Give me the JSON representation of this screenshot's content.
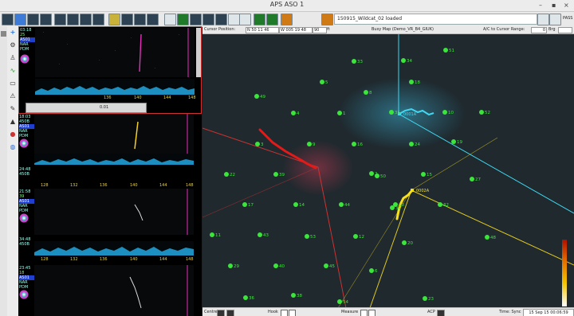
{
  "window": {
    "title": "APS ASO 1",
    "minimize": "–",
    "maximize": "▪",
    "close": "×"
  },
  "toolbar": {
    "load_status": "150915_Wildcat_02 loaded",
    "pass_label": "PASS"
  },
  "map_header": {
    "cursor_label": "Cursor Position:",
    "lat": "N 50 11 46",
    "lon": "W 005 19 48",
    "depth": "90",
    "depth_unit": "ft",
    "map_name": "Busy Map (Demo_VR_B4_GIUK)",
    "range_label": "A/C to Cursor Range:",
    "range_value": "0",
    "bearing_label": "Brg"
  },
  "panels": [
    {
      "time": "03:18",
      "id": "25",
      "mode": "AS01",
      "tags": [
        "NAR",
        "PDM"
      ],
      "ticks": [
        "136",
        "140",
        "144",
        "148"
      ],
      "bottom_value": "0.01"
    },
    {
      "time": "18:03",
      "id": "450B",
      "mode": "AS01",
      "tags": [
        "NAR",
        "PDM"
      ],
      "ticks": [
        "128",
        "132",
        "136",
        "140",
        "144",
        "148"
      ]
    },
    {
      "time": "24:48",
      "id": "450B",
      "mode": "AS01",
      "tags": [
        "NAR",
        "PDM"
      ],
      "ticks": [
        "128",
        "132",
        "136",
        "140",
        "144",
        "148"
      ]
    },
    {
      "time": "21:58",
      "id": "39",
      "mode": "AS01",
      "tags": [
        "NAR",
        "PDM"
      ],
      "ticks": [
        "128",
        "132",
        "136",
        "140",
        "144",
        "148"
      ]
    },
    {
      "time": "34:48",
      "id": "450B",
      "mode": "AS01",
      "tags": [
        "NAR",
        "PDM"
      ],
      "ticks": [
        "128",
        "132",
        "136",
        "140",
        "144",
        "148"
      ]
    },
    {
      "time": "23:45",
      "id": "18",
      "mode": "AS01",
      "tags": [
        "NAR",
        "PDM"
      ]
    }
  ],
  "buoys": [
    "33",
    "34",
    "51",
    "49",
    "5",
    "18",
    "8",
    "35",
    "10",
    "1",
    "4",
    "52",
    "3",
    "9",
    "16",
    "24",
    "19",
    "22",
    "39",
    "2",
    "15",
    "27",
    "17",
    "14",
    "44",
    "13",
    "32",
    "11",
    "43",
    "53",
    "12",
    "20",
    "48",
    "29",
    "40",
    "45",
    "6",
    "36",
    "38",
    "54",
    "23",
    "50",
    "31"
  ],
  "tracks": [
    {
      "label": "0001A",
      "color": "#3fd8f0"
    },
    {
      "label": "0002A",
      "color": "#f7e11a"
    },
    {
      "label": "",
      "color": "#e21a1a"
    }
  ],
  "map_status": {
    "centre_label": "Centre",
    "hook_label": "Hook",
    "measure_label": "Measure",
    "acp_label": "ACP",
    "time_label": "Time: Sync",
    "time_value": "15 Sep 15 00:06:59"
  }
}
